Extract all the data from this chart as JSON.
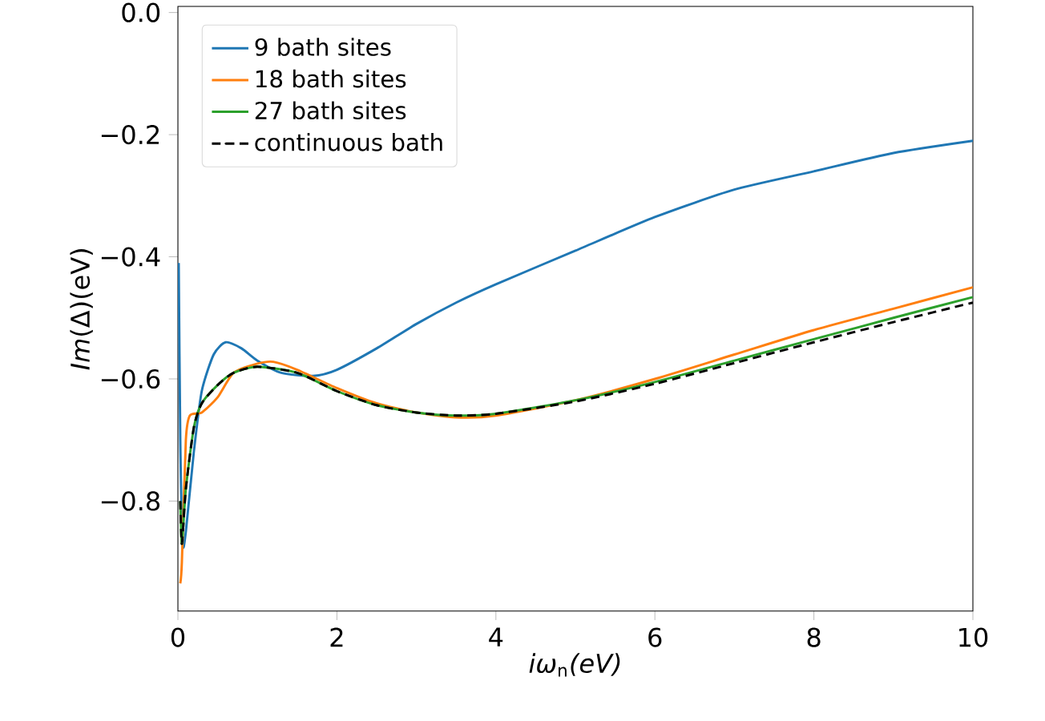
{
  "chart_data": {
    "type": "line",
    "xlabel": "*iω*$_{n}$*(eV)*",
    "ylabel": "*Im*(Δ)(eV)",
    "xlim": [
      0,
      10
    ],
    "ylim": [
      -0.98,
      0.01
    ],
    "xticks": [
      0,
      2,
      4,
      6,
      8,
      10
    ],
    "yticks": [
      {
        "value": -0.8,
        "label": "−0.8"
      },
      {
        "value": -0.6,
        "label": "−0.6"
      },
      {
        "value": -0.4,
        "label": "−0.4"
      },
      {
        "value": -0.2,
        "label": "−0.2"
      },
      {
        "value": 0,
        "label": "0.0"
      }
    ],
    "legend": "top left",
    "grid": false,
    "series": [
      {
        "name": "9 bath sites",
        "color": "#1f77b4",
        "line_style": "solid",
        "x": [
          0.01,
          0.03,
          0.06,
          0.1,
          0.2,
          0.3,
          0.45,
          0.6,
          0.8,
          1.0,
          1.3,
          1.7,
          2.0,
          2.5,
          3,
          3.5,
          4,
          5,
          6,
          7,
          8,
          9,
          10
        ],
        "values": [
          -0.41,
          -0.7,
          -0.87,
          -0.85,
          -0.72,
          -0.62,
          -0.56,
          -0.54,
          -0.55,
          -0.57,
          -0.59,
          -0.595,
          -0.585,
          -0.55,
          -0.51,
          -0.475,
          -0.445,
          -0.39,
          -0.335,
          -0.29,
          -0.26,
          -0.23,
          -0.21
        ]
      },
      {
        "name": "18 bath sites",
        "color": "#ff7f0e",
        "line_style": "solid",
        "x": [
          0.03,
          0.05,
          0.1,
          0.15,
          0.3,
          0.5,
          0.7,
          1.0,
          1.2,
          1.5,
          2,
          2.5,
          3,
          3.5,
          4,
          5,
          6,
          7,
          8,
          9,
          10
        ],
        "values": [
          -0.935,
          -0.9,
          -0.7,
          -0.66,
          -0.655,
          -0.63,
          -0.59,
          -0.575,
          -0.572,
          -0.585,
          -0.615,
          -0.64,
          -0.655,
          -0.663,
          -0.66,
          -0.635,
          -0.6,
          -0.56,
          -0.52,
          -0.485,
          -0.45
        ]
      },
      {
        "name": "27 bath sites",
        "color": "#2ca02c",
        "line_style": "solid",
        "x": [
          0.03,
          0.05,
          0.1,
          0.2,
          0.3,
          0.5,
          0.7,
          1.0,
          1.5,
          2,
          2.5,
          3,
          3.5,
          4,
          5,
          6,
          7,
          8,
          9,
          10
        ],
        "values": [
          -0.8,
          -0.87,
          -0.78,
          -0.68,
          -0.64,
          -0.61,
          -0.59,
          -0.58,
          -0.59,
          -0.62,
          -0.643,
          -0.655,
          -0.66,
          -0.657,
          -0.635,
          -0.605,
          -0.57,
          -0.535,
          -0.5,
          -0.466
        ]
      },
      {
        "name": "continuous bath",
        "color": "#000000",
        "line_style": "dashed",
        "x": [
          0.03,
          0.05,
          0.1,
          0.2,
          0.3,
          0.5,
          0.7,
          1.0,
          1.5,
          2,
          2.5,
          3,
          3.5,
          4,
          5,
          6,
          7,
          8,
          9,
          10
        ],
        "values": [
          -0.8,
          -0.87,
          -0.78,
          -0.68,
          -0.64,
          -0.61,
          -0.59,
          -0.58,
          -0.59,
          -0.62,
          -0.643,
          -0.655,
          -0.66,
          -0.657,
          -0.637,
          -0.608,
          -0.574,
          -0.54,
          -0.507,
          -0.475
        ]
      }
    ]
  }
}
